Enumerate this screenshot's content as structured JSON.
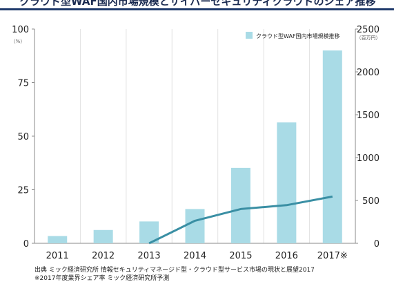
{
  "title": "クラウド型WAF国内市場規模とサイバーセキュリティクラウドのシェア推移",
  "chart_data": {
    "type": "bar",
    "categories": [
      "2011",
      "2012",
      "2013",
      "2014",
      "2015",
      "2016",
      "2017※"
    ],
    "series": [
      {
        "name": "クラウド型WAF国内市場規模推移",
        "type": "bar",
        "axis": "right",
        "color": "#a9dbe6",
        "values": [
          85,
          155,
          255,
          400,
          880,
          1410,
          2250
        ]
      },
      {
        "type": "line",
        "axis": "left",
        "color": "#3a8fa4",
        "values": [
          null,
          null,
          0,
          10.5,
          16,
          17.8,
          21.8
        ]
      }
    ],
    "y_left": {
      "ticks": [
        "0",
        "25",
        "50",
        "75",
        "100"
      ],
      "unit": "（%）",
      "ylim": [
        0,
        100
      ]
    },
    "y_right": {
      "ticks": [
        "0",
        "500",
        "1000",
        "1500",
        "2000",
        "2500"
      ],
      "unit": "（百万円）",
      "ylim": [
        0,
        2500
      ]
    },
    "grid": "vertical",
    "legend_position": "top-right"
  },
  "source_lines": [
    "出典 ミック経済研究所 情報セキュリティマネージド型・クラウド型サービス市場の現状と展望2017",
    "※2017年度業界シェア率 ミック経済研究所予測"
  ]
}
